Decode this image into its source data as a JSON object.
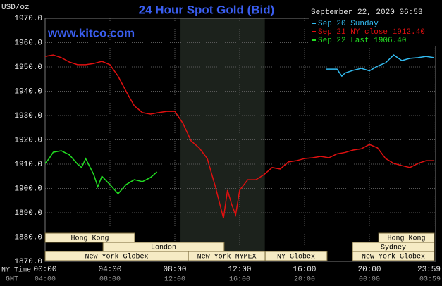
{
  "chart_data": {
    "type": "line",
    "title": "24 Hour Spot Gold (Bid)",
    "y_label": "USD/oz",
    "watermark": "www.kitco.com",
    "timestamp": "September 22, 2020 06:53",
    "x_row_labels": [
      "NY Time",
      "GMT"
    ],
    "xlim": [
      0,
      24
    ],
    "xticks": [
      {
        "value": 0,
        "label": "00:00"
      },
      {
        "value": 4,
        "label": "04:00"
      },
      {
        "value": 8,
        "label": "08:00"
      },
      {
        "value": 12,
        "label": "12:00"
      },
      {
        "value": 16,
        "label": "16:00"
      },
      {
        "value": 20,
        "label": "20:00"
      },
      {
        "value": 23.9833,
        "label": "23:59"
      }
    ],
    "x_gmt_labels": [
      "04:00",
      "08:00",
      "12:00",
      "16:00",
      "20:00",
      "00:00",
      "03:59"
    ],
    "ylim": [
      1870,
      1970
    ],
    "yticks": [
      {
        "value": 1870,
        "label": "1870.0"
      },
      {
        "value": 1880,
        "label": "1880.0"
      },
      {
        "value": 1890,
        "label": "1890.0"
      },
      {
        "value": 1900,
        "label": "1900.0"
      },
      {
        "value": 1910,
        "label": "1910.0"
      },
      {
        "value": 1920,
        "label": "1920.0"
      },
      {
        "value": 1930,
        "label": "1930.0"
      },
      {
        "value": 1940,
        "label": "1940.0"
      },
      {
        "value": 1950,
        "label": "1950.0"
      },
      {
        "value": 1960,
        "label": "1960.0"
      },
      {
        "value": 1970,
        "label": "1970.0"
      }
    ],
    "grid": true,
    "shaded_x": [
      8.35,
      13.55
    ],
    "series": [
      {
        "name": "Sep 20 Sunday",
        "color": "#33bbf0",
        "x": [
          17.35,
          18,
          18.3,
          18.5,
          19,
          19.5,
          20,
          20.5,
          21,
          21.5,
          22,
          22.5,
          23,
          23.5,
          23.98
        ],
        "values": [
          1949.1,
          1949.1,
          1946.2,
          1947.5,
          1948.6,
          1949.4,
          1948.4,
          1950.3,
          1951.7,
          1954.9,
          1952.6,
          1953.5,
          1953.8,
          1954.3,
          1953.8
        ]
      },
      {
        "name": "Sep 21 NY close 1912.40",
        "color": "#e01010",
        "x": [
          0,
          0.5,
          1,
          1.5,
          2,
          2.5,
          3,
          3.5,
          4,
          4.5,
          5,
          5.5,
          6,
          6.5,
          7,
          7.5,
          8,
          8.5,
          9,
          9.5,
          10,
          10.5,
          11,
          11.25,
          11.5,
          11.75,
          12,
          12.5,
          13,
          13.5,
          14,
          14.5,
          15,
          15.5,
          16,
          16.5,
          17,
          17.5,
          18,
          18.5,
          19,
          19.5,
          20,
          20.5,
          21,
          21.5,
          22,
          22.5,
          23,
          23.5,
          23.98
        ],
        "values": [
          1954.3,
          1954.9,
          1953.8,
          1952,
          1950.9,
          1950.9,
          1951.4,
          1952.3,
          1950.9,
          1946.2,
          1939.9,
          1934,
          1931.2,
          1930.6,
          1931.2,
          1931.7,
          1931.7,
          1926.8,
          1919.6,
          1916.7,
          1912.3,
          1900.7,
          1887.7,
          1899.3,
          1893.5,
          1889.1,
          1899.3,
          1903.6,
          1903.6,
          1905.7,
          1908.6,
          1908,
          1910.9,
          1911.4,
          1912.3,
          1912.6,
          1913.2,
          1912.6,
          1914.2,
          1914.8,
          1915.8,
          1916.3,
          1918.1,
          1916.7,
          1912.3,
          1910.3,
          1909.4,
          1908.6,
          1910.3,
          1911.4,
          1911.4
        ]
      },
      {
        "name": "Sep 22 Last 1906.40",
        "color": "#22dd22",
        "x": [
          0,
          0.25,
          0.5,
          1,
          1.5,
          2,
          2.25,
          2.5,
          3,
          3.25,
          3.5,
          4,
          4.5,
          5,
          5.5,
          6,
          6.5,
          6.9
        ],
        "values": [
          1910.3,
          1912.3,
          1914.9,
          1915.5,
          1913.8,
          1910,
          1908.6,
          1912.3,
          1905.7,
          1900.7,
          1905,
          1901.6,
          1897.8,
          1901.6,
          1903.6,
          1902.8,
          1904.5,
          1906.8
        ]
      }
    ],
    "session_rows": [
      [
        {
          "name": "Hong Kong",
          "start": 0,
          "end": 5.52
        },
        {
          "name": "Hong Kong",
          "start": 20.57,
          "end": 24
        }
      ],
      [
        {
          "name": "London",
          "start": 3.57,
          "end": 11.04
        },
        {
          "name": "Sydney",
          "start": 18.96,
          "end": 24
        }
      ],
      [
        {
          "name": "New York Globex",
          "start": 0,
          "end": 8.83
        },
        {
          "name": "New York NYMEX",
          "start": 8.83,
          "end": 13.57
        },
        {
          "name": "NY Globex",
          "start": 13.57,
          "end": 17.39
        },
        {
          "name": "New York Globex",
          "start": 18.96,
          "end": 24
        }
      ]
    ]
  }
}
